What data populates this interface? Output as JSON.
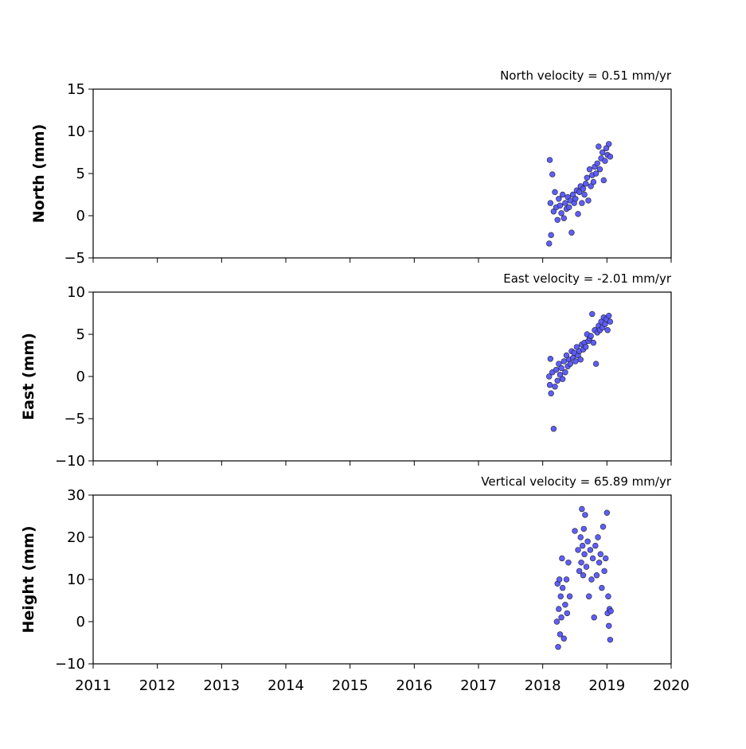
{
  "chart_data": [
    {
      "type": "scatter",
      "title": "North velocity = 0.51 mm/yr",
      "ylabel": "North (mm)",
      "color": "#5555ff",
      "show_xtick_labels": false,
      "xlim": [
        2011,
        2020
      ],
      "xticks": [
        2011,
        2012,
        2013,
        2014,
        2015,
        2016,
        2017,
        2018,
        2019,
        2020
      ],
      "ylim": [
        -5,
        15
      ],
      "yticks": [
        {
          "value": -5,
          "label": "−5"
        },
        0,
        5,
        10,
        15
      ],
      "x": [
        2018.1,
        2018.11,
        2018.12,
        2018.13,
        2018.15,
        2018.17,
        2018.19,
        2018.21,
        2018.23,
        2018.25,
        2018.27,
        2018.29,
        2018.31,
        2018.33,
        2018.35,
        2018.37,
        2018.39,
        2018.41,
        2018.43,
        2018.45,
        2018.47,
        2018.49,
        2018.51,
        2018.53,
        2018.55,
        2018.57,
        2018.59,
        2018.61,
        2018.63,
        2018.65,
        2018.67,
        2018.69,
        2018.71,
        2018.73,
        2018.75,
        2018.77,
        2018.79,
        2018.81,
        2018.83,
        2018.85,
        2018.87,
        2018.89,
        2018.91,
        2018.93,
        2018.95,
        2018.97,
        2018.99,
        2019.01,
        2019.03,
        2019.05
      ],
      "values": [
        -3.3,
        6.6,
        1.5,
        -2.3,
        4.9,
        0.5,
        2.8,
        1.0,
        -0.5,
        2.0,
        1.2,
        0.3,
        2.5,
        -0.3,
        1.5,
        0.8,
        2.2,
        1.0,
        1.8,
        -2.0,
        2.5,
        1.5,
        2.0,
        3.0,
        0.2,
        2.8,
        3.5,
        1.5,
        3.2,
        2.5,
        3.8,
        4.5,
        1.8,
        5.5,
        3.5,
        4.8,
        4.0,
        5.8,
        5.0,
        6.2,
        8.2,
        5.5,
        6.8,
        7.5,
        4.2,
        6.5,
        8.0,
        7.2,
        8.5,
        7.0
      ]
    },
    {
      "type": "scatter",
      "title": "East velocity = -2.01 mm/yr",
      "ylabel": "East (mm)",
      "color": "#5555ff",
      "show_xtick_labels": false,
      "xlim": [
        2011,
        2020
      ],
      "xticks": [
        2011,
        2012,
        2013,
        2014,
        2015,
        2016,
        2017,
        2018,
        2019,
        2020
      ],
      "ylim": [
        -10,
        10
      ],
      "yticks": [
        {
          "value": -10,
          "label": "−10"
        },
        {
          "value": -5,
          "label": "−5"
        },
        0,
        5,
        10
      ],
      "x": [
        2018.1,
        2018.11,
        2018.12,
        2018.13,
        2018.15,
        2018.17,
        2018.19,
        2018.21,
        2018.23,
        2018.25,
        2018.27,
        2018.29,
        2018.31,
        2018.33,
        2018.35,
        2018.37,
        2018.39,
        2018.41,
        2018.43,
        2018.45,
        2018.47,
        2018.49,
        2018.51,
        2018.53,
        2018.55,
        2018.57,
        2018.59,
        2018.61,
        2018.63,
        2018.65,
        2018.67,
        2018.69,
        2018.71,
        2018.73,
        2018.75,
        2018.77,
        2018.79,
        2018.81,
        2018.83,
        2018.85,
        2018.87,
        2018.89,
        2018.91,
        2018.93,
        2018.95,
        2018.97,
        2018.99,
        2019.01,
        2019.03,
        2019.05
      ],
      "values": [
        0.0,
        -1.0,
        2.1,
        -2.0,
        0.5,
        -6.2,
        -1.2,
        0.8,
        -0.5,
        1.5,
        0.2,
        1.0,
        -0.3,
        1.8,
        0.5,
        2.5,
        1.2,
        2.0,
        1.5,
        3.0,
        2.2,
        2.8,
        1.8,
        3.5,
        2.5,
        3.0,
        2.0,
        3.8,
        3.2,
        4.0,
        3.5,
        5.0,
        4.2,
        4.5,
        4.8,
        7.4,
        4.0,
        5.5,
        1.5,
        5.2,
        6.0,
        5.5,
        6.5,
        5.8,
        7.0,
        6.2,
        6.8,
        5.5,
        7.2,
        6.5
      ]
    },
    {
      "type": "scatter",
      "title": "Vertical velocity = 65.89 mm/yr",
      "ylabel": "Height (mm)",
      "color": "#5555ff",
      "show_xtick_labels": true,
      "xlim": [
        2011,
        2020
      ],
      "xticks": [
        2011,
        2012,
        2013,
        2014,
        2015,
        2016,
        2017,
        2018,
        2019,
        2020
      ],
      "ylim": [
        -10,
        30
      ],
      "yticks": [
        {
          "value": -10,
          "label": "−10"
        },
        0,
        10,
        20,
        30
      ],
      "x": [
        2018.22,
        2018.23,
        2018.24,
        2018.25,
        2018.26,
        2018.27,
        2018.28,
        2018.29,
        2018.3,
        2018.31,
        2018.33,
        2018.35,
        2018.37,
        2018.38,
        2018.4,
        2018.42,
        2018.5,
        2018.55,
        2018.57,
        2018.59,
        2018.6,
        2018.61,
        2018.62,
        2018.63,
        2018.64,
        2018.65,
        2018.66,
        2018.68,
        2018.7,
        2018.72,
        2018.74,
        2018.76,
        2018.78,
        2018.8,
        2018.82,
        2018.84,
        2018.86,
        2018.88,
        2018.9,
        2018.92,
        2018.94,
        2018.96,
        2018.98,
        2019.0,
        2019.01,
        2019.02,
        2019.03,
        2019.04,
        2019.05,
        2019.06
      ],
      "values": [
        0,
        9,
        -6,
        3,
        10,
        -3,
        6,
        1,
        15,
        8,
        -4,
        4,
        10,
        2,
        14,
        6,
        21.5,
        17,
        12,
        20,
        14,
        26.7,
        18,
        11,
        22,
        16,
        25.3,
        13,
        19,
        6,
        17,
        10,
        15,
        1,
        18,
        11,
        20,
        14,
        16,
        8,
        22.5,
        12,
        15,
        25.8,
        2,
        6,
        -1,
        3,
        -4.3,
        2.5
      ]
    }
  ]
}
